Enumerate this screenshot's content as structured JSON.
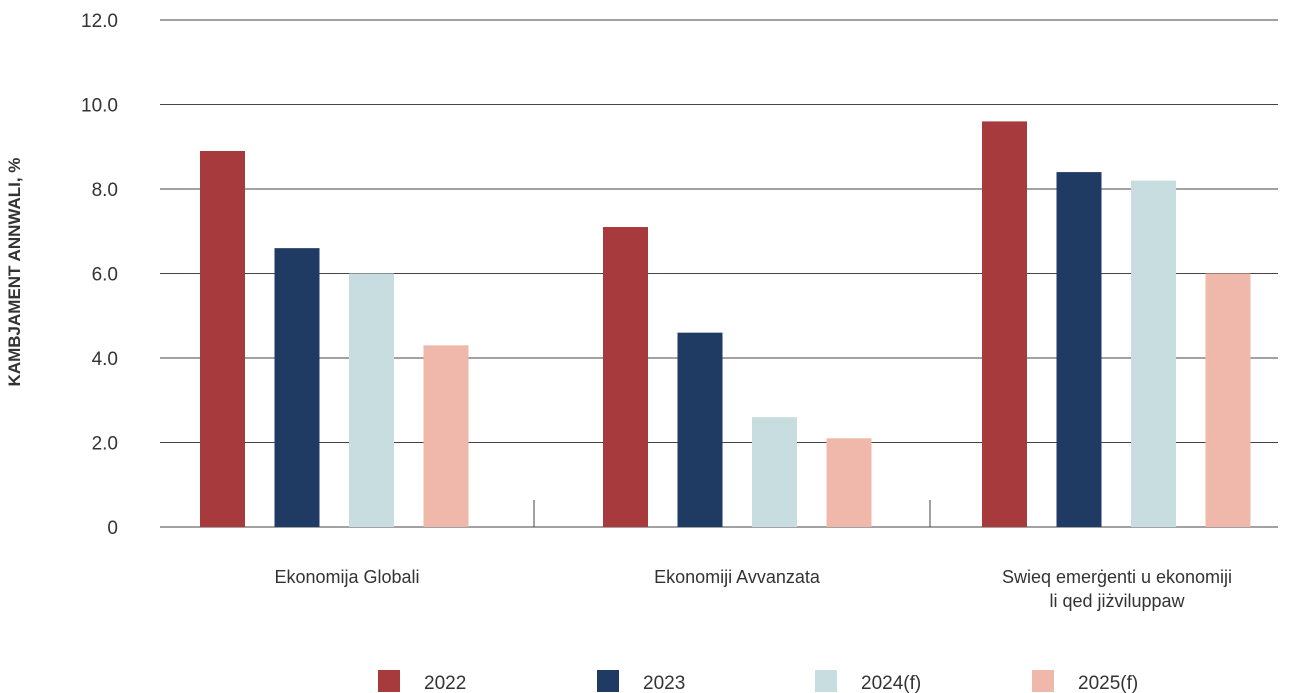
{
  "chart_data": {
    "type": "bar",
    "ylabel": "KAMBJAMENT ANNWALI, %",
    "ylim": [
      0,
      12
    ],
    "yticks": [
      "0",
      "2.0",
      "4.0",
      "6.0",
      "8.0",
      "10.0",
      "12.0"
    ],
    "grid": true,
    "legend_position": "bottom",
    "categories": [
      [
        "Ekonomija Globali"
      ],
      [
        "Ekonomiji Avvanzata"
      ],
      [
        "Swieq emerġenti u ekonomiji",
        "li qed jiżviluppaw"
      ]
    ],
    "series": [
      {
        "name": "2022",
        "color": "#a63a3c",
        "values": [
          8.9,
          7.1,
          9.6
        ]
      },
      {
        "name": "2023",
        "color": "#1f3a63",
        "values": [
          6.6,
          4.6,
          8.4
        ]
      },
      {
        "name": "2024(f)",
        "color": "#c7dde0",
        "values": [
          6.0,
          2.6,
          8.2
        ]
      },
      {
        "name": "2025(f)",
        "color": "#efb8aa",
        "values": [
          4.3,
          2.1,
          6.0
        ]
      }
    ]
  }
}
